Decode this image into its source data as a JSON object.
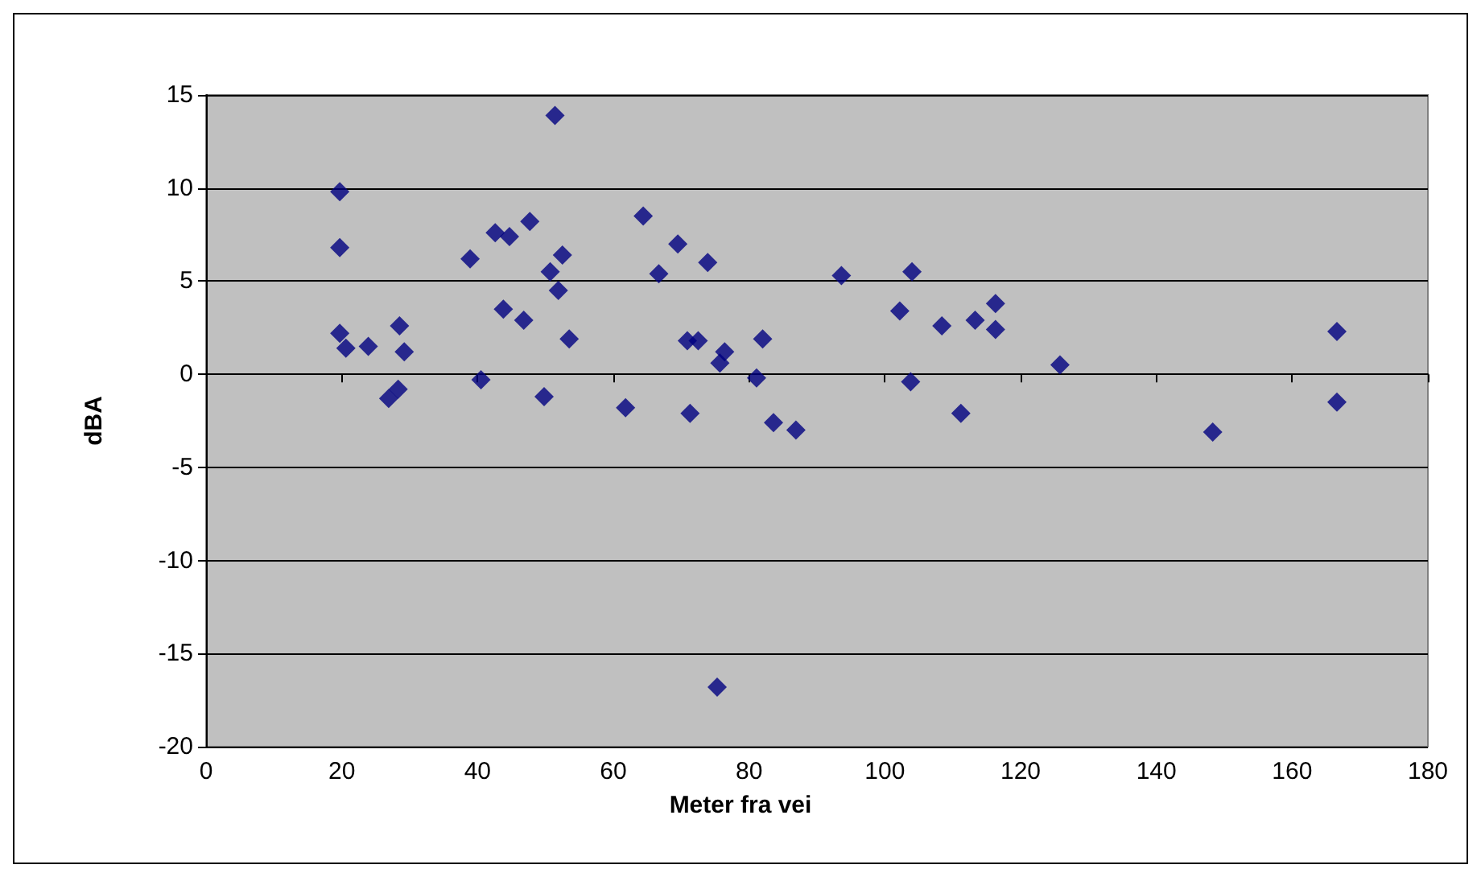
{
  "chart_data": {
    "type": "scatter",
    "xlabel": "Meter fra vei",
    "ylabel": "dBA",
    "marker": "diamond",
    "grid": "y",
    "xlim": [
      0,
      180
    ],
    "xticks": [
      0,
      20,
      40,
      60,
      80,
      100,
      120,
      140,
      160,
      180
    ],
    "ylim": [
      -20,
      15
    ],
    "yticks": [
      -20,
      -15,
      -10,
      -5,
      0,
      5,
      10,
      15
    ],
    "series": [
      {
        "color": "#000080",
        "x": [
          19.7,
          19.7,
          19.7,
          20.6,
          23.9,
          28.5,
          29.2,
          26.9,
          28.3,
          38.9,
          40.5,
          42.6,
          44.7,
          43.8,
          46.8,
          47.7,
          51.4,
          50.7,
          52.5,
          51.9,
          53.5,
          49.8,
          61.8,
          64.4,
          66.7,
          69.5,
          73.9,
          70.9,
          72.5,
          76.4,
          75.7,
          71.3,
          82.0,
          81.1,
          83.6,
          86.9,
          93.6,
          102.2,
          103.8,
          104.0,
          108.4,
          111.2,
          113.3,
          116.3,
          116.3,
          125.8,
          148.3,
          166.6,
          166.6,
          75.3
        ],
        "values": [
          9.8,
          6.8,
          2.2,
          1.4,
          1.5,
          2.6,
          1.2,
          -1.3,
          -0.8,
          6.2,
          -0.3,
          7.6,
          7.4,
          3.5,
          2.9,
          8.2,
          13.9,
          5.5,
          6.4,
          4.5,
          1.9,
          -1.2,
          -1.8,
          8.5,
          5.4,
          7.0,
          6.0,
          1.8,
          1.8,
          1.2,
          0.6,
          -2.1,
          1.9,
          -0.2,
          -2.6,
          -3.0,
          5.3,
          3.4,
          -0.4,
          5.5,
          2.6,
          -2.1,
          2.9,
          3.8,
          2.4,
          0.5,
          -3.1,
          2.3,
          -1.5,
          -16.8
        ]
      }
    ]
  }
}
